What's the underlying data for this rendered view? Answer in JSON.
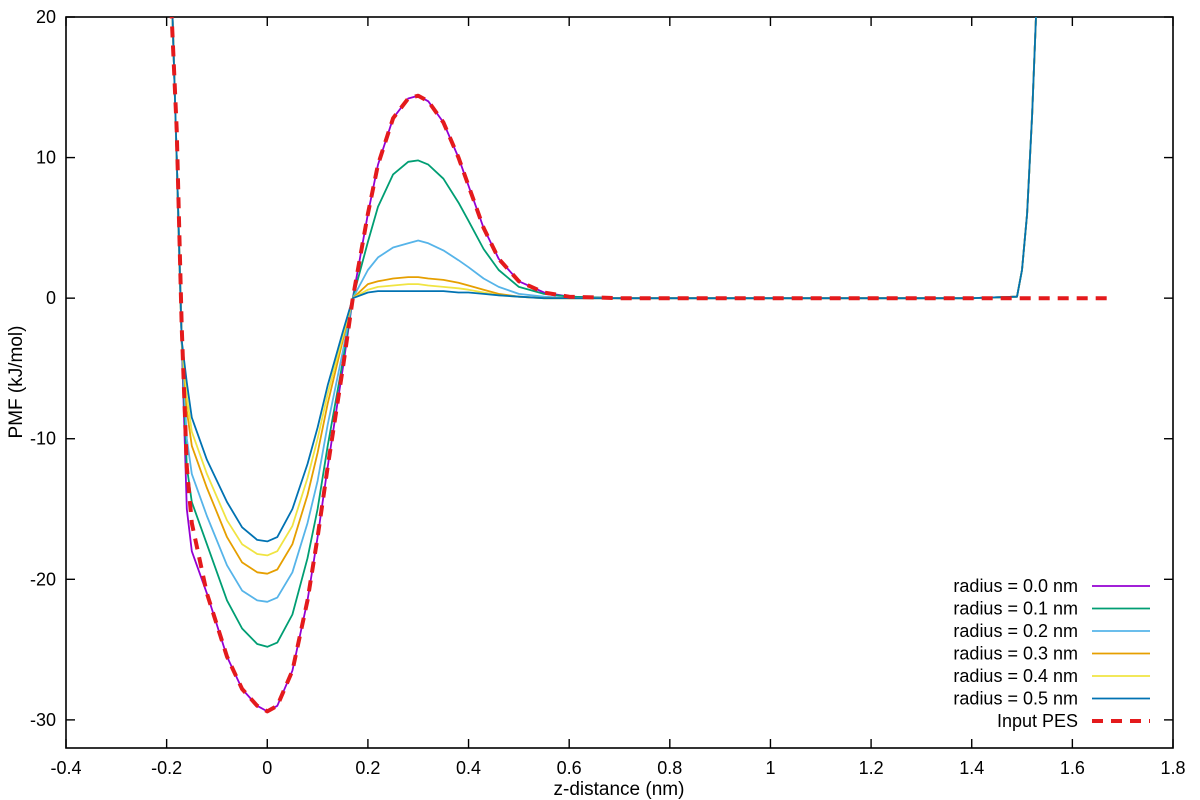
{
  "chart_data": {
    "type": "line",
    "xlabel": "z-distance (nm)",
    "ylabel": "PMF (kJ/mol)",
    "xlim": [
      -0.4,
      1.8
    ],
    "ylim": [
      -32,
      20
    ],
    "x_ticks": [
      "-0.4",
      "-0.2",
      "0",
      "0.2",
      "0.4",
      "0.6",
      "0.8",
      "1",
      "1.2",
      "1.4",
      "1.6",
      "1.8"
    ],
    "y_ticks": [
      "-30",
      "-20",
      "-10",
      "0",
      "10",
      "20"
    ],
    "grid": false,
    "legend_position": "bottom-right",
    "series": [
      {
        "name": "radius = 0.0 nm",
        "color": "#9400d3",
        "dash": "solid",
        "x": [
          -0.19,
          -0.18,
          -0.17,
          -0.16,
          -0.15,
          -0.12,
          -0.08,
          -0.05,
          -0.02,
          0.0,
          0.02,
          0.05,
          0.08,
          0.1,
          0.12,
          0.15,
          0.17,
          0.2,
          0.22,
          0.25,
          0.28,
          0.3,
          0.32,
          0.35,
          0.38,
          0.4,
          0.43,
          0.46,
          0.5,
          0.55,
          0.6,
          0.7,
          0.8,
          1.0,
          1.2,
          1.4,
          1.49,
          1.5,
          1.51,
          1.52,
          1.53
        ],
        "y": [
          22,
          10,
          -3,
          -15,
          -18,
          -21,
          -25.5,
          -27.8,
          -29.0,
          -29.4,
          -29.0,
          -26.5,
          -21.5,
          -17.0,
          -12.0,
          -5.0,
          0.0,
          6.0,
          9.5,
          12.8,
          14.2,
          14.4,
          14.0,
          12.5,
          10.0,
          8.0,
          5.0,
          2.8,
          1.2,
          0.4,
          0.1,
          0.0,
          0.0,
          0.0,
          0.0,
          0.0,
          0.1,
          2.0,
          6.0,
          13.0,
          22.0
        ]
      },
      {
        "name": "radius = 0.1 nm",
        "color": "#009e73",
        "dash": "solid",
        "x": [
          -0.19,
          -0.18,
          -0.17,
          -0.16,
          -0.15,
          -0.12,
          -0.08,
          -0.05,
          -0.02,
          0.0,
          0.02,
          0.05,
          0.08,
          0.1,
          0.12,
          0.15,
          0.17,
          0.2,
          0.22,
          0.25,
          0.28,
          0.3,
          0.32,
          0.35,
          0.38,
          0.4,
          0.43,
          0.46,
          0.5,
          0.55,
          0.6,
          0.7,
          0.8,
          1.0,
          1.2,
          1.4,
          1.49,
          1.5,
          1.51,
          1.52,
          1.53
        ],
        "y": [
          22,
          10,
          -3,
          -12,
          -14.5,
          -17.5,
          -21.5,
          -23.5,
          -24.6,
          -24.8,
          -24.5,
          -22.5,
          -18.5,
          -15.0,
          -10.5,
          -4.5,
          0.0,
          4.0,
          6.5,
          8.8,
          9.7,
          9.8,
          9.5,
          8.5,
          6.8,
          5.5,
          3.5,
          2.0,
          0.8,
          0.3,
          0.1,
          0.0,
          0.0,
          0.0,
          0.0,
          0.0,
          0.1,
          2.0,
          6.0,
          13.0,
          22.0
        ]
      },
      {
        "name": "radius = 0.2 nm",
        "color": "#56b4e9",
        "dash": "solid",
        "x": [
          -0.19,
          -0.18,
          -0.17,
          -0.16,
          -0.15,
          -0.12,
          -0.08,
          -0.05,
          -0.02,
          0.0,
          0.02,
          0.05,
          0.08,
          0.1,
          0.12,
          0.15,
          0.17,
          0.2,
          0.22,
          0.25,
          0.28,
          0.3,
          0.32,
          0.35,
          0.38,
          0.4,
          0.43,
          0.46,
          0.5,
          0.55,
          0.6,
          0.7,
          0.8,
          1.0,
          1.2,
          1.4,
          1.49,
          1.5,
          1.51,
          1.52,
          1.53
        ],
        "y": [
          22,
          10,
          -3,
          -10,
          -12.5,
          -15.5,
          -19.0,
          -20.8,
          -21.5,
          -21.6,
          -21.3,
          -19.5,
          -16.0,
          -13.0,
          -9.0,
          -3.8,
          0.0,
          2.0,
          2.9,
          3.6,
          3.9,
          4.1,
          3.9,
          3.4,
          2.7,
          2.2,
          1.4,
          0.8,
          0.3,
          0.1,
          0.0,
          0.0,
          0.0,
          0.0,
          0.0,
          0.0,
          0.1,
          2.0,
          6.0,
          13.0,
          22.0
        ]
      },
      {
        "name": "radius = 0.3 nm",
        "color": "#e69f00",
        "dash": "solid",
        "x": [
          -0.19,
          -0.18,
          -0.17,
          -0.16,
          -0.15,
          -0.12,
          -0.08,
          -0.05,
          -0.02,
          0.0,
          0.02,
          0.05,
          0.08,
          0.1,
          0.12,
          0.15,
          0.17,
          0.2,
          0.22,
          0.25,
          0.28,
          0.3,
          0.32,
          0.35,
          0.38,
          0.4,
          0.43,
          0.46,
          0.5,
          0.55,
          0.6,
          0.7,
          0.8,
          1.0,
          1.2,
          1.4,
          1.49,
          1.5,
          1.51,
          1.52,
          1.53
        ],
        "y": [
          22,
          10,
          -3,
          -8,
          -10.5,
          -13.5,
          -17.0,
          -18.8,
          -19.5,
          -19.6,
          -19.3,
          -17.5,
          -14.0,
          -11.0,
          -7.5,
          -3.0,
          0.0,
          1.0,
          1.2,
          1.4,
          1.5,
          1.5,
          1.4,
          1.3,
          1.1,
          0.9,
          0.6,
          0.3,
          0.1,
          0.0,
          0.0,
          0.0,
          0.0,
          0.0,
          0.0,
          0.0,
          0.1,
          2.0,
          6.0,
          13.0,
          22.0
        ]
      },
      {
        "name": "radius = 0.4 nm",
        "color": "#f0e442",
        "dash": "solid",
        "x": [
          -0.19,
          -0.18,
          -0.17,
          -0.16,
          -0.15,
          -0.12,
          -0.08,
          -0.05,
          -0.02,
          0.0,
          0.02,
          0.05,
          0.08,
          0.1,
          0.12,
          0.15,
          0.17,
          0.2,
          0.22,
          0.25,
          0.28,
          0.3,
          0.32,
          0.35,
          0.38,
          0.4,
          0.43,
          0.46,
          0.5,
          0.55,
          0.6,
          0.7,
          0.8,
          1.0,
          1.2,
          1.4,
          1.49,
          1.5,
          1.51,
          1.52,
          1.53
        ],
        "y": [
          22,
          10,
          -3,
          -7,
          -9.5,
          -12.5,
          -15.8,
          -17.5,
          -18.2,
          -18.3,
          -18.0,
          -16.2,
          -12.8,
          -10.0,
          -6.8,
          -2.7,
          0.0,
          0.6,
          0.8,
          0.9,
          1.0,
          1.0,
          0.9,
          0.8,
          0.7,
          0.6,
          0.4,
          0.2,
          0.1,
          0.0,
          0.0,
          0.0,
          0.0,
          0.0,
          0.0,
          0.0,
          0.1,
          2.0,
          6.0,
          13.0,
          22.0
        ]
      },
      {
        "name": "radius = 0.5 nm",
        "color": "#0072b2",
        "dash": "solid",
        "x": [
          -0.19,
          -0.18,
          -0.17,
          -0.16,
          -0.15,
          -0.12,
          -0.08,
          -0.05,
          -0.02,
          0.0,
          0.02,
          0.05,
          0.08,
          0.1,
          0.12,
          0.15,
          0.17,
          0.2,
          0.22,
          0.25,
          0.28,
          0.3,
          0.32,
          0.35,
          0.38,
          0.4,
          0.43,
          0.46,
          0.5,
          0.55,
          0.6,
          0.7,
          0.8,
          1.0,
          1.2,
          1.4,
          1.49,
          1.5,
          1.51,
          1.52,
          1.53
        ],
        "y": [
          22,
          10,
          -3,
          -6,
          -8.5,
          -11.5,
          -14.5,
          -16.3,
          -17.2,
          -17.3,
          -17.0,
          -15.0,
          -11.8,
          -9.2,
          -6.2,
          -2.4,
          0.0,
          0.4,
          0.5,
          0.5,
          0.5,
          0.5,
          0.5,
          0.5,
          0.4,
          0.4,
          0.3,
          0.2,
          0.1,
          0.0,
          0.0,
          0.0,
          0.0,
          0.0,
          0.0,
          0.0,
          0.1,
          2.0,
          6.0,
          13.0,
          22.0
        ]
      },
      {
        "name": "Input PES",
        "color": "#e41a1c",
        "dash": "dashed",
        "x": [
          -0.2,
          -0.19,
          -0.18,
          -0.17,
          -0.16,
          -0.15,
          -0.12,
          -0.08,
          -0.05,
          -0.02,
          0.0,
          0.02,
          0.05,
          0.08,
          0.1,
          0.12,
          0.15,
          0.17,
          0.2,
          0.22,
          0.25,
          0.28,
          0.3,
          0.32,
          0.35,
          0.38,
          0.4,
          0.43,
          0.46,
          0.5,
          0.55,
          0.6,
          0.7,
          0.8,
          1.0,
          1.2,
          1.4,
          1.6,
          1.67
        ],
        "y": [
          22,
          20,
          12,
          -2,
          -12,
          -16,
          -21,
          -25.5,
          -27.8,
          -29.0,
          -29.4,
          -29.0,
          -26.5,
          -21.5,
          -17.0,
          -12.0,
          -5.0,
          0.0,
          6.0,
          9.5,
          12.8,
          14.2,
          14.4,
          14.0,
          12.5,
          10.0,
          8.0,
          5.0,
          2.8,
          1.2,
          0.4,
          0.1,
          0.0,
          0.0,
          0.0,
          0.0,
          0.0,
          0.0,
          0.0
        ]
      }
    ]
  }
}
